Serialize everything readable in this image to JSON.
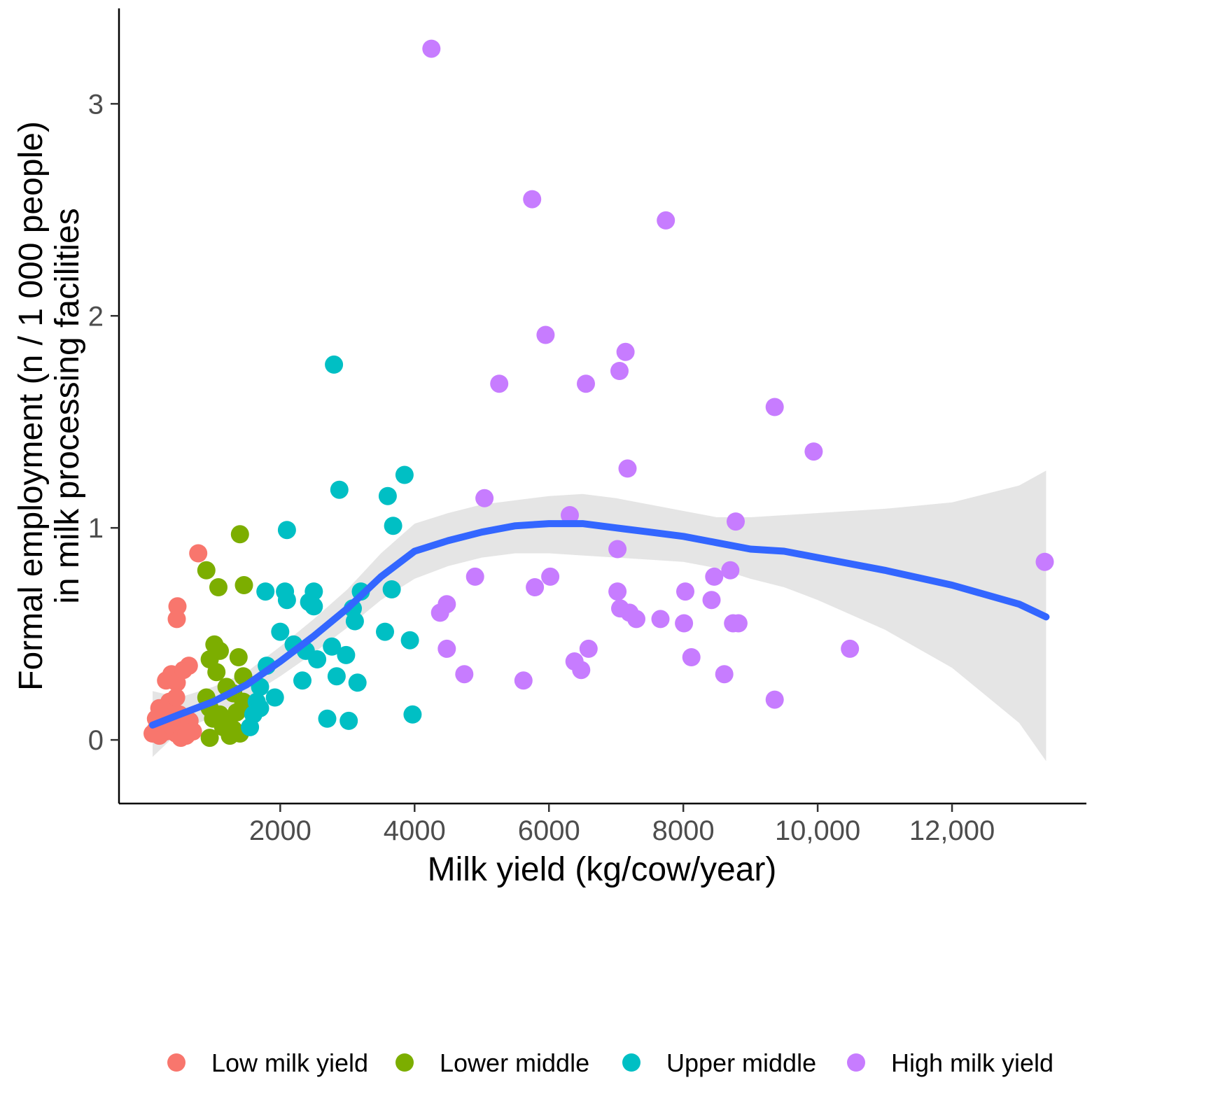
{
  "chart_data": {
    "type": "scatter",
    "title": "",
    "xlabel": "Milk yield (kg/cow/year)",
    "ylabel_lines": [
      "Formal employment (n / 1 000 people)",
      "in milk processing facilities"
    ],
    "xlim": [
      -400,
      14000
    ],
    "ylim": [
      -0.3,
      3.45
    ],
    "x_ticks": [
      {
        "value": 2000,
        "label": "2000"
      },
      {
        "value": 4000,
        "label": "4000"
      },
      {
        "value": 6000,
        "label": "6000"
      },
      {
        "value": 8000,
        "label": "8000"
      },
      {
        "value": 10000,
        "label": "10,000"
      },
      {
        "value": 12000,
        "label": "12,000"
      }
    ],
    "y_ticks": [
      {
        "value": 0,
        "label": "0"
      },
      {
        "value": 1,
        "label": "1"
      },
      {
        "value": 2,
        "label": "2"
      },
      {
        "value": 3,
        "label": "3"
      }
    ],
    "grid": false,
    "legend_position": "bottom",
    "series": [
      {
        "name": "Low milk yield",
        "color": "#F8766D",
        "points": [
          [
            100,
            0.03
          ],
          [
            150,
            0.05
          ],
          [
            200,
            0.02
          ],
          [
            250,
            0.08
          ],
          [
            300,
            0.04
          ],
          [
            350,
            0.1
          ],
          [
            400,
            0.06
          ],
          [
            450,
            0.03
          ],
          [
            500,
            0.12
          ],
          [
            550,
            0.07
          ],
          [
            600,
            0.05
          ],
          [
            650,
            0.09
          ],
          [
            700,
            0.04
          ],
          [
            300,
            0.28
          ],
          [
            380,
            0.31
          ],
          [
            460,
            0.27
          ],
          [
            560,
            0.33
          ],
          [
            640,
            0.35
          ],
          [
            460,
            0.57
          ],
          [
            470,
            0.63
          ],
          [
            780,
            0.88
          ],
          [
            200,
            0.15
          ],
          [
            350,
            0.18
          ],
          [
            450,
            0.2
          ],
          [
            520,
            0.01
          ],
          [
            250,
            0.11
          ],
          [
            600,
            0.02
          ],
          [
            150,
            0.1
          ]
        ]
      },
      {
        "name": "Lower middle",
        "color": "#7CAE00",
        "points": [
          [
            900,
            0.8
          ],
          [
            1080,
            0.72
          ],
          [
            1400,
            0.97
          ],
          [
            1460,
            0.73
          ],
          [
            950,
            0.38
          ],
          [
            1020,
            0.45
          ],
          [
            1100,
            0.42
          ],
          [
            1380,
            0.39
          ],
          [
            1050,
            0.32
          ],
          [
            1200,
            0.25
          ],
          [
            1300,
            0.22
          ],
          [
            1450,
            0.3
          ],
          [
            900,
            0.2
          ],
          [
            950,
            0.15
          ],
          [
            1000,
            0.1
          ],
          [
            1100,
            0.12
          ],
          [
            1200,
            0.08
          ],
          [
            1300,
            0.05
          ],
          [
            1400,
            0.03
          ],
          [
            1450,
            0.18
          ],
          [
            1350,
            0.13
          ],
          [
            1250,
            0.02
          ],
          [
            950,
            0.01
          ],
          [
            1150,
            0.06
          ]
        ]
      },
      {
        "name": "Upper middle",
        "color": "#00BFC4",
        "points": [
          [
            2800,
            1.77
          ],
          [
            2880,
            1.18
          ],
          [
            3850,
            1.25
          ],
          [
            3600,
            1.15
          ],
          [
            3680,
            1.01
          ],
          [
            2100,
            0.99
          ],
          [
            1780,
            0.7
          ],
          [
            2070,
            0.7
          ],
          [
            2100,
            0.66
          ],
          [
            2500,
            0.7
          ],
          [
            2430,
            0.65
          ],
          [
            2500,
            0.63
          ],
          [
            3200,
            0.7
          ],
          [
            3080,
            0.62
          ],
          [
            3660,
            0.71
          ],
          [
            3110,
            0.56
          ],
          [
            2000,
            0.51
          ],
          [
            2200,
            0.45
          ],
          [
            2380,
            0.42
          ],
          [
            2550,
            0.38
          ],
          [
            2330,
            0.28
          ],
          [
            2770,
            0.44
          ],
          [
            2840,
            0.3
          ],
          [
            2980,
            0.4
          ],
          [
            3150,
            0.27
          ],
          [
            3560,
            0.51
          ],
          [
            3930,
            0.47
          ],
          [
            2700,
            0.1
          ],
          [
            3020,
            0.09
          ],
          [
            3970,
            0.12
          ],
          [
            1800,
            0.35
          ],
          [
            1700,
            0.25
          ],
          [
            1650,
            0.18
          ],
          [
            1600,
            0.12
          ],
          [
            1550,
            0.06
          ],
          [
            1920,
            0.2
          ],
          [
            1700,
            0.15
          ]
        ]
      },
      {
        "name": "High milk yield",
        "color": "#C77CFF",
        "points": [
          [
            4250,
            3.26
          ],
          [
            5750,
            2.55
          ],
          [
            7740,
            2.45
          ],
          [
            5950,
            1.91
          ],
          [
            7140,
            1.83
          ],
          [
            7050,
            1.74
          ],
          [
            5260,
            1.68
          ],
          [
            6550,
            1.68
          ],
          [
            9360,
            1.57
          ],
          [
            9940,
            1.36
          ],
          [
            7170,
            1.28
          ],
          [
            5040,
            1.14
          ],
          [
            6310,
            1.06
          ],
          [
            8780,
            1.03
          ],
          [
            13380,
            0.84
          ],
          [
            7020,
            0.9
          ],
          [
            8700,
            0.8
          ],
          [
            4900,
            0.77
          ],
          [
            6020,
            0.77
          ],
          [
            5790,
            0.72
          ],
          [
            8460,
            0.77
          ],
          [
            7020,
            0.7
          ],
          [
            8030,
            0.7
          ],
          [
            8420,
            0.66
          ],
          [
            7060,
            0.62
          ],
          [
            7200,
            0.6
          ],
          [
            4480,
            0.64
          ],
          [
            4380,
            0.6
          ],
          [
            7300,
            0.57
          ],
          [
            7660,
            0.57
          ],
          [
            8010,
            0.55
          ],
          [
            8740,
            0.55
          ],
          [
            8820,
            0.55
          ],
          [
            4480,
            0.43
          ],
          [
            6590,
            0.43
          ],
          [
            10480,
            0.43
          ],
          [
            6380,
            0.37
          ],
          [
            6480,
            0.33
          ],
          [
            8120,
            0.39
          ],
          [
            4740,
            0.31
          ],
          [
            8610,
            0.31
          ],
          [
            5620,
            0.28
          ],
          [
            9360,
            0.19
          ]
        ]
      }
    ],
    "smooth": {
      "name": "LOESS fit",
      "color": "#3366FF",
      "band_color": "#999999",
      "x": [
        100,
        500,
        1000,
        1500,
        2000,
        2500,
        3000,
        3500,
        4000,
        4500,
        5000,
        5500,
        6000,
        6500,
        7000,
        7500,
        8000,
        8500,
        9000,
        9500,
        10000,
        11000,
        12000,
        13000,
        13400
      ],
      "y": [
        0.07,
        0.12,
        0.18,
        0.26,
        0.37,
        0.49,
        0.62,
        0.77,
        0.89,
        0.94,
        0.98,
        1.01,
        1.02,
        1.02,
        1.0,
        0.98,
        0.96,
        0.93,
        0.9,
        0.89,
        0.86,
        0.8,
        0.73,
        0.64,
        0.58
      ],
      "lower": [
        -0.08,
        0.04,
        0.11,
        0.2,
        0.3,
        0.41,
        0.53,
        0.66,
        0.76,
        0.82,
        0.86,
        0.88,
        0.88,
        0.87,
        0.86,
        0.85,
        0.84,
        0.81,
        0.76,
        0.72,
        0.66,
        0.52,
        0.34,
        0.08,
        -0.1
      ],
      "upper": [
        0.23,
        0.2,
        0.25,
        0.32,
        0.44,
        0.57,
        0.71,
        0.88,
        1.02,
        1.07,
        1.11,
        1.13,
        1.15,
        1.16,
        1.14,
        1.11,
        1.08,
        1.05,
        1.05,
        1.06,
        1.07,
        1.09,
        1.12,
        1.2,
        1.27
      ]
    }
  }
}
